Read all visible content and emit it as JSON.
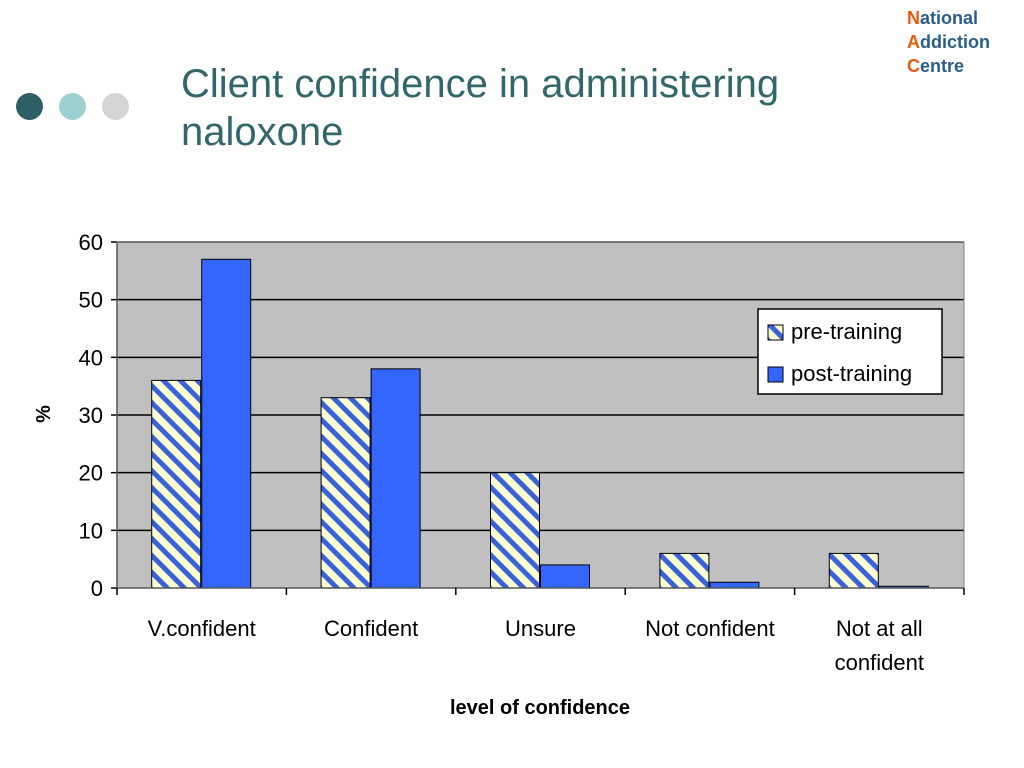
{
  "slide": {
    "title": "Client confidence in administering naloxone",
    "dot_colors": [
      "#2f5f66",
      "#9ccfd0",
      "#d4d4d4"
    ],
    "logo": {
      "lines": [
        {
          "initial": "N",
          "rest": "ational"
        },
        {
          "initial": "A",
          "rest": "ddiction"
        },
        {
          "initial": "C",
          "rest": "entre"
        }
      ]
    }
  },
  "chart_data": {
    "type": "bar",
    "categories": [
      "V.confident",
      "Confident",
      "Unsure",
      "Not confident",
      "Not at all confident"
    ],
    "category_lines": [
      [
        "V.confident"
      ],
      [
        "Confident"
      ],
      [
        "Unsure"
      ],
      [
        "Not confident"
      ],
      [
        "Not at all",
        "confident"
      ]
    ],
    "series": [
      {
        "name": "pre-training",
        "values": [
          36,
          33,
          20,
          6,
          6
        ],
        "pattern": "diagonal-stripes",
        "colors": [
          "#3a62d8",
          "#ffffd4"
        ]
      },
      {
        "name": "post-training",
        "values": [
          57,
          38,
          4,
          1,
          0.3
        ],
        "color": "#3366ff"
      }
    ],
    "xlabel": "level of confidence",
    "ylabel": "%",
    "ylim": [
      0,
      60
    ],
    "yticks": [
      0,
      10,
      20,
      30,
      40,
      50,
      60
    ],
    "grid": true,
    "plot_background": "#c0c0c0",
    "legend_position": "right"
  }
}
